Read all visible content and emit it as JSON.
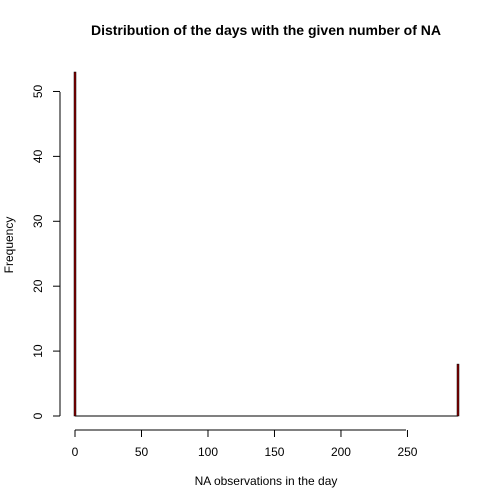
{
  "chart_data": {
    "type": "bar",
    "title": "Distribution of the days with the given number of NA",
    "xlabel": "NA observations in the day",
    "ylabel": "Frequency",
    "xlim": [
      0,
      288
    ],
    "ylim": [
      0,
      53
    ],
    "x_ticks": [
      "0",
      "50",
      "100",
      "150",
      "200",
      "250"
    ],
    "y_ticks": [
      "0",
      "10",
      "20",
      "30",
      "40",
      "50"
    ],
    "bars": [
      {
        "x": 0,
        "value": 53
      },
      {
        "x": 288,
        "value": 8
      }
    ],
    "bar_color": "#8b0000",
    "grid": false,
    "legend": "none"
  }
}
